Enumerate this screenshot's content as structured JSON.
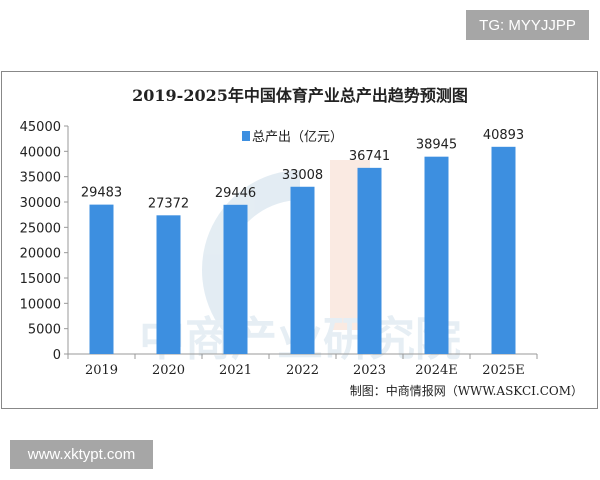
{
  "watermark_top": "TG: MYYJJPP",
  "watermark_bottom": "www.xktypt.com",
  "chart_data": {
    "type": "bar",
    "title": "2019-2025年中国体育产业总产出趋势预测图",
    "categories": [
      "2019",
      "2020",
      "2021",
      "2022",
      "2023",
      "2024E",
      "2025E"
    ],
    "series": [
      {
        "name": "总产出（亿元）",
        "values": [
          29483,
          27372,
          29446,
          33008,
          36741,
          38945,
          40893
        ],
        "color": "#3d8fe0"
      }
    ],
    "ylim": [
      0,
      45000
    ],
    "yticks": [
      0,
      5000,
      10000,
      15000,
      20000,
      25000,
      30000,
      35000,
      40000,
      45000
    ],
    "legend_position": "top-center",
    "grid": false,
    "source": "制图：中商情报网（WWW.ASKCI.COM）",
    "background_watermark": "中商产业研究院"
  }
}
